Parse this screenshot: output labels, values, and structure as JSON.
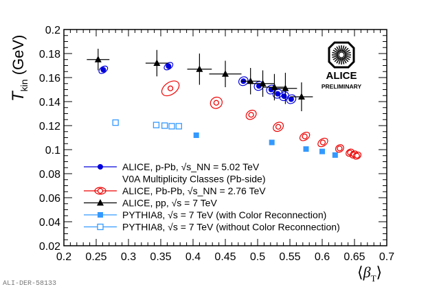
{
  "chart_data": {
    "type": "scatter",
    "title": "",
    "xlabel": "⟨β_T⟩",
    "ylabel": "T_kin (GeV)",
    "xlim": [
      0.2,
      0.7
    ],
    "ylim": [
      0.02,
      0.2
    ],
    "xticks": [
      0.2,
      0.25,
      0.3,
      0.35,
      0.4,
      0.45,
      0.5,
      0.55,
      0.6,
      0.65,
      0.7
    ],
    "yticks": [
      0.02,
      0.04,
      0.06,
      0.08,
      0.1,
      0.12,
      0.14,
      0.16,
      0.18,
      0.2
    ],
    "xtick_labels": [
      "0.2",
      "0.25",
      "0.3",
      "0.35",
      "0.4",
      "0.45",
      "0.5",
      "0.55",
      "0.6",
      "0.65",
      "0.7"
    ],
    "ytick_labels": [
      "0.02",
      "0.04",
      "0.06",
      "0.08",
      "0.1",
      "0.12",
      "0.14",
      "0.16",
      "0.18",
      "0.2"
    ],
    "series": [
      {
        "name": "ALICE, p-Pb, √s_NN = 5.02 TeV",
        "subtitle": "V0A Multiplicity Classes (Pb-side)",
        "color": "#0000dd",
        "marker": "filled-circle-with-ellipse",
        "points": [
          {
            "x": 0.261,
            "y": 0.1665,
            "ex": 0.0075,
            "ey": 0.0025
          },
          {
            "x": 0.362,
            "y": 0.1695,
            "ex": 0.0075,
            "ey": 0.0025
          },
          {
            "x": 0.478,
            "y": 0.157,
            "ex": 0.0075,
            "ey": 0.0035
          },
          {
            "x": 0.502,
            "y": 0.153,
            "ex": 0.0075,
            "ey": 0.0035
          },
          {
            "x": 0.521,
            "y": 0.15,
            "ex": 0.0075,
            "ey": 0.0035
          },
          {
            "x": 0.531,
            "y": 0.1465,
            "ex": 0.0075,
            "ey": 0.0035
          },
          {
            "x": 0.541,
            "y": 0.1445,
            "ex": 0.0075,
            "ey": 0.0035
          },
          {
            "x": 0.552,
            "y": 0.142,
            "ex": 0.0075,
            "ey": 0.0035
          }
        ]
      },
      {
        "name": "ALICE, Pb-Pb, √s_NN = 2.76 TeV",
        "color": "#ee0000",
        "marker": "open-circle-with-ellipse",
        "points": [
          {
            "x": 0.365,
            "y": 0.151,
            "ex": 0.015,
            "ey": 0.005
          },
          {
            "x": 0.436,
            "y": 0.139,
            "ex": 0.0085,
            "ey": 0.005
          },
          {
            "x": 0.49,
            "y": 0.129,
            "ex": 0.0065,
            "ey": 0.0045
          },
          {
            "x": 0.532,
            "y": 0.119,
            "ex": 0.0065,
            "ey": 0.0045
          },
          {
            "x": 0.573,
            "y": 0.111,
            "ex": 0.0055,
            "ey": 0.0045
          },
          {
            "x": 0.601,
            "y": 0.106,
            "ex": 0.0055,
            "ey": 0.0045
          },
          {
            "x": 0.627,
            "y": 0.101,
            "ex": 0.0055,
            "ey": 0.0035
          },
          {
            "x": 0.643,
            "y": 0.0975,
            "ex": 0.005,
            "ey": 0.0035
          },
          {
            "x": 0.649,
            "y": 0.096,
            "ex": 0.005,
            "ey": 0.0035
          },
          {
            "x": 0.654,
            "y": 0.095,
            "ex": 0.005,
            "ey": 0.0035
          }
        ]
      },
      {
        "name": "ALICE, pp, √s = 7 TeV",
        "color": "#000000",
        "marker": "filled-triangle-with-errors",
        "points": [
          {
            "x": 0.253,
            "y": 0.175,
            "xerr": 0.0175,
            "yerr": 0.009
          },
          {
            "x": 0.344,
            "y": 0.172,
            "xerr": 0.0175,
            "yerr": 0.011
          },
          {
            "x": 0.41,
            "y": 0.167,
            "xerr": 0.019,
            "yerr": 0.013
          },
          {
            "x": 0.45,
            "y": 0.163,
            "xerr": 0.025,
            "yerr": 0.011
          },
          {
            "x": 0.489,
            "y": 0.157,
            "xerr": 0.015,
            "yerr": 0.011
          },
          {
            "x": 0.508,
            "y": 0.155,
            "xerr": 0.018,
            "yerr": 0.011
          },
          {
            "x": 0.526,
            "y": 0.152,
            "xerr": 0.018,
            "yerr": 0.011
          },
          {
            "x": 0.543,
            "y": 0.151,
            "xerr": 0.018,
            "yerr": 0.013
          },
          {
            "x": 0.568,
            "y": 0.144,
            "xerr": 0.0175,
            "yerr": 0.012
          }
        ]
      },
      {
        "name": "PYTHIA8, √s = 7 TeV (with Color Reconnection)",
        "color": "#3399ff",
        "marker": "filled-square",
        "points": [
          {
            "x": 0.405,
            "y": 0.112
          },
          {
            "x": 0.522,
            "y": 0.106
          },
          {
            "x": 0.575,
            "y": 0.1005
          },
          {
            "x": 0.6,
            "y": 0.0985
          },
          {
            "x": 0.62,
            "y": 0.0955
          }
        ]
      },
      {
        "name": "PYTHIA8, √s = 7 TeV (without Color Reconnection)",
        "color": "#3399ff",
        "marker": "open-square",
        "points": [
          {
            "x": 0.28,
            "y": 0.1225
          },
          {
            "x": 0.343,
            "y": 0.1205
          },
          {
            "x": 0.356,
            "y": 0.12
          },
          {
            "x": 0.367,
            "y": 0.1195
          },
          {
            "x": 0.378,
            "y": 0.1195
          }
        ]
      }
    ],
    "legend": [
      {
        "label": "ALICE, p-Pb, √s_NN = 5.02 TeV",
        "series": 0
      },
      {
        "label": "V0A Multiplicity Classes (Pb-side)",
        "series": -1
      },
      {
        "label": "ALICE, Pb-Pb, √s_NN = 2.76 TeV",
        "series": 1
      },
      {
        "label": "ALICE, pp, √s = 7 TeV",
        "series": 2
      },
      {
        "label": "PYTHIA8, √s = 7 TeV (with Color Reconnection)",
        "series": 3
      },
      {
        "label": "PYTHIA8, √s = 7 TeV (without Color Reconnection)",
        "series": 4
      }
    ],
    "legend_position": "bottom-left",
    "grid": false
  },
  "logo": {
    "name": "ALICE",
    "subtitle": "PRELIMINARY"
  },
  "figure_id": "ALI-DER-58133"
}
